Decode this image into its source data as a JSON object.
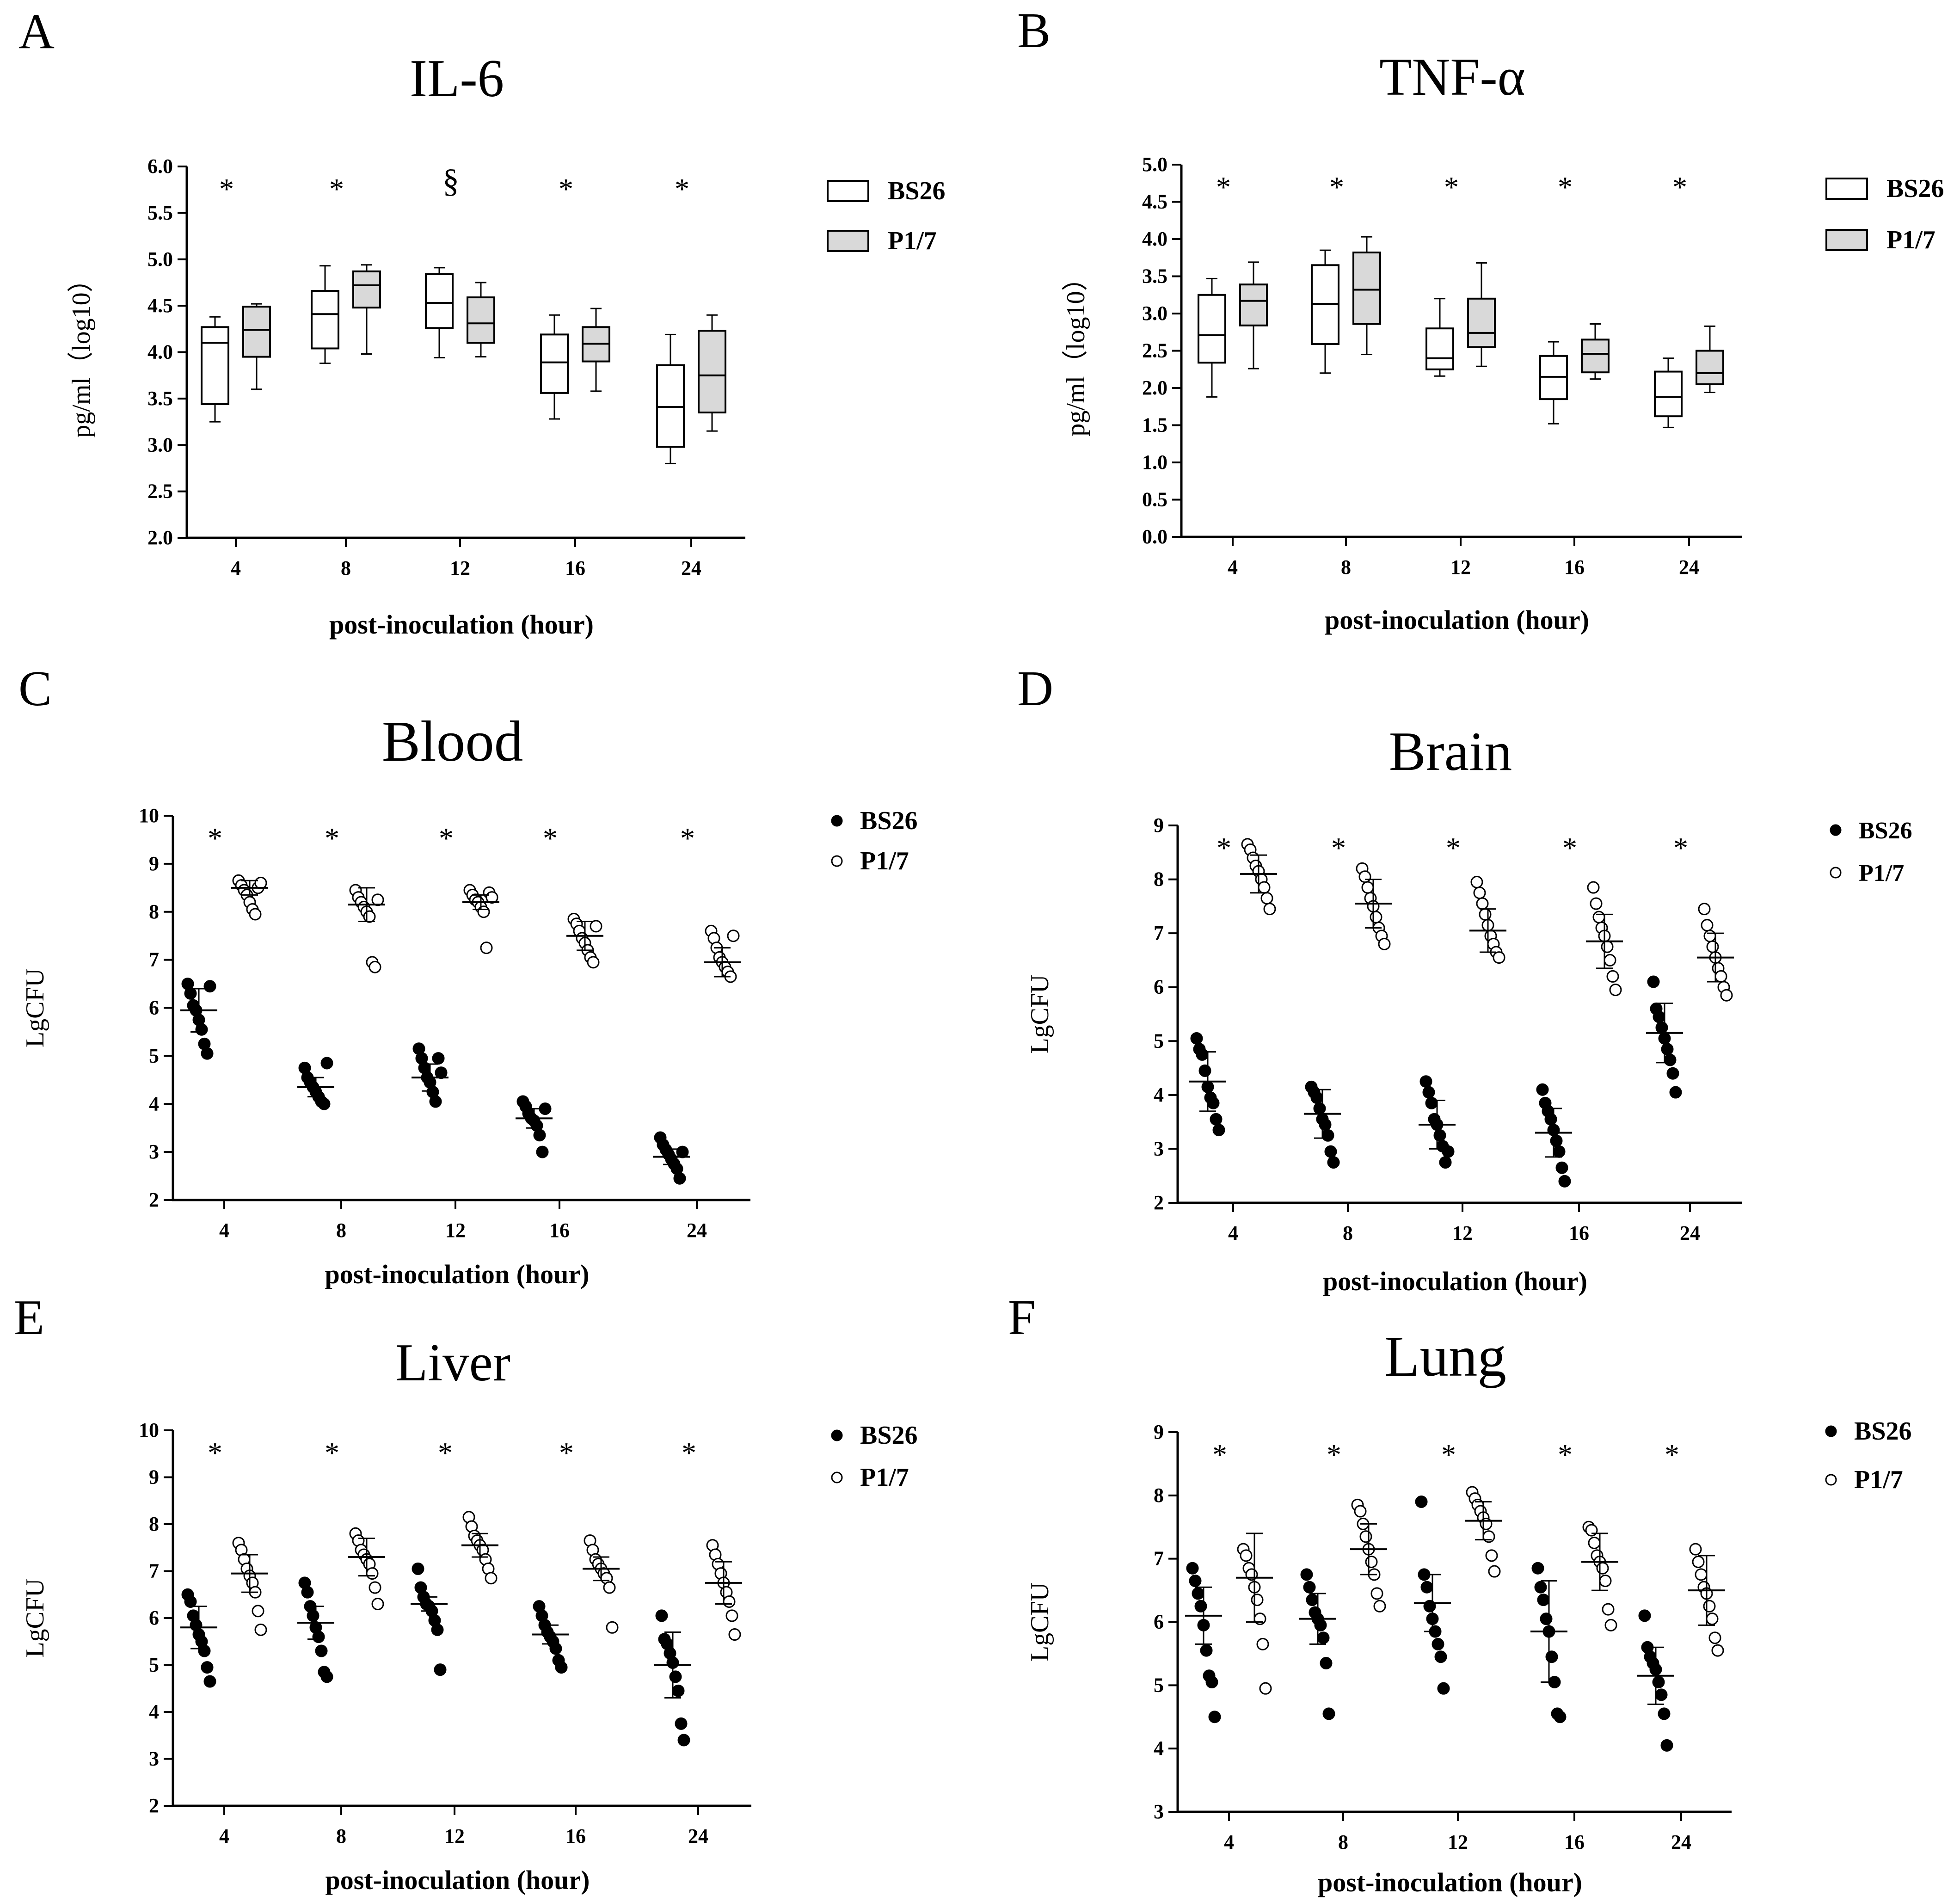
{
  "figure": {
    "xlabel": "post-inoculation (hour)",
    "significance_marker": "*",
    "section_marker": "§",
    "colors": {
      "ink": "#000000",
      "p17_fill": "#d9d9d9",
      "bs26_fill": "#ffffff",
      "background": "#ffffff"
    }
  },
  "chart_data": [
    {
      "id": "A",
      "panel_label": "A",
      "type": "box",
      "title": "IL-6",
      "xlabel": "post-inoculation (hour)",
      "ylabel": "pg/ml（log10）",
      "categories": [
        "4",
        "8",
        "12",
        "16",
        "24"
      ],
      "ylim": [
        2.0,
        6.0
      ],
      "yticks": [
        "2.0",
        "2.5",
        "3.0",
        "3.5",
        "4.0",
        "4.5",
        "5.0",
        "5.5",
        "6.0"
      ],
      "ytick_step": 0.5,
      "legend": [
        "BS26",
        "P1/7"
      ],
      "legend_position": "top-right",
      "markers": [
        "*",
        "*",
        "§",
        "*",
        "*"
      ],
      "series": [
        {
          "name": "BS26",
          "fill": "#ffffff",
          "boxes": [
            {
              "min": 3.25,
              "q1": 3.44,
              "median": 4.1,
              "q3": 4.27,
              "max": 4.38
            },
            {
              "min": 3.88,
              "q1": 4.04,
              "median": 4.41,
              "q3": 4.66,
              "max": 4.93
            },
            {
              "min": 3.94,
              "q1": 4.26,
              "median": 4.53,
              "q3": 4.84,
              "max": 4.91
            },
            {
              "min": 3.28,
              "q1": 3.56,
              "median": 3.89,
              "q3": 4.19,
              "max": 4.4
            },
            {
              "min": 2.8,
              "q1": 2.98,
              "median": 3.41,
              "q3": 3.86,
              "max": 4.19
            }
          ]
        },
        {
          "name": "P1/7",
          "fill": "#d9d9d9",
          "boxes": [
            {
              "min": 3.6,
              "q1": 3.95,
              "median": 4.24,
              "q3": 4.49,
              "max": 4.52
            },
            {
              "min": 3.98,
              "q1": 4.48,
              "median": 4.72,
              "q3": 4.87,
              "max": 4.94
            },
            {
              "min": 3.95,
              "q1": 4.1,
              "median": 4.31,
              "q3": 4.59,
              "max": 4.75
            },
            {
              "min": 3.58,
              "q1": 3.9,
              "median": 4.09,
              "q3": 4.27,
              "max": 4.47
            },
            {
              "min": 3.15,
              "q1": 3.35,
              "median": 3.75,
              "q3": 4.23,
              "max": 4.4
            }
          ]
        }
      ]
    },
    {
      "id": "B",
      "panel_label": "B",
      "type": "box",
      "title": "TNF-α",
      "xlabel": "post-inoculation (hour)",
      "ylabel": "pg/ml（log10）",
      "categories": [
        "4",
        "8",
        "12",
        "16",
        "24"
      ],
      "ylim": [
        0.0,
        5.0
      ],
      "yticks": [
        "0.0",
        "0.5",
        "1.0",
        "1.5",
        "2.0",
        "2.5",
        "3.0",
        "3.5",
        "4.0",
        "4.5",
        "5.0"
      ],
      "ytick_step": 0.5,
      "legend": [
        "BS26",
        "P1/7"
      ],
      "legend_position": "top-right",
      "markers": [
        "*",
        "*",
        "*",
        "*",
        "*"
      ],
      "series": [
        {
          "name": "BS26",
          "fill": "#ffffff",
          "boxes": [
            {
              "min": 1.88,
              "q1": 2.34,
              "median": 2.71,
              "q3": 3.25,
              "max": 3.47
            },
            {
              "min": 2.2,
              "q1": 2.59,
              "median": 3.13,
              "q3": 3.65,
              "max": 3.85
            },
            {
              "min": 2.16,
              "q1": 2.25,
              "median": 2.4,
              "q3": 2.8,
              "max": 3.2
            },
            {
              "min": 1.52,
              "q1": 1.85,
              "median": 2.15,
              "q3": 2.43,
              "max": 2.62
            },
            {
              "min": 1.47,
              "q1": 1.62,
              "median": 1.88,
              "q3": 2.22,
              "max": 2.4
            }
          ]
        },
        {
          "name": "P1/7",
          "fill": "#d9d9d9",
          "boxes": [
            {
              "min": 2.26,
              "q1": 2.84,
              "median": 3.17,
              "q3": 3.39,
              "max": 3.69
            },
            {
              "min": 2.45,
              "q1": 2.86,
              "median": 3.32,
              "q3": 3.82,
              "max": 4.03
            },
            {
              "min": 2.29,
              "q1": 2.55,
              "median": 2.74,
              "q3": 3.2,
              "max": 3.68
            },
            {
              "min": 2.12,
              "q1": 2.21,
              "median": 2.46,
              "q3": 2.65,
              "max": 2.86
            },
            {
              "min": 1.94,
              "q1": 2.05,
              "median": 2.2,
              "q3": 2.5,
              "max": 2.83
            }
          ]
        }
      ]
    },
    {
      "id": "C",
      "panel_label": "C",
      "type": "scatter",
      "title": "Blood",
      "xlabel": "post-inoculation (hour)",
      "ylabel": "LgCFU",
      "categories": [
        "4",
        "8",
        "12",
        "16",
        "24"
      ],
      "ylim": [
        2,
        10
      ],
      "yticks": [
        "2",
        "3",
        "4",
        "5",
        "6",
        "7",
        "8",
        "9",
        "10"
      ],
      "legend": [
        "BS26",
        "P1/7"
      ],
      "legend_position": "top-right",
      "markers": [
        "*",
        "*",
        "*",
        "*",
        "*"
      ],
      "series": [
        {
          "name": "BS26",
          "filled": true,
          "points": [
            [
              6.5,
              6.3,
              6.05,
              5.95,
              5.75,
              5.55,
              5.25,
              5.05,
              6.45
            ],
            [
              4.75,
              4.55,
              4.45,
              4.35,
              4.25,
              4.15,
              4.05,
              4.0,
              4.85
            ],
            [
              5.15,
              4.95,
              4.75,
              4.55,
              4.45,
              4.25,
              4.05,
              4.95,
              4.65
            ],
            [
              4.05,
              3.95,
              3.8,
              3.7,
              3.65,
              3.55,
              3.35,
              3.0,
              3.9
            ],
            [
              3.3,
              3.15,
              3.05,
              2.95,
              2.85,
              2.75,
              2.65,
              2.45,
              3.0
            ]
          ],
          "mean": [
            5.95,
            4.35,
            4.55,
            3.7,
            2.9
          ],
          "sd": [
            0.45,
            0.2,
            0.28,
            0.2,
            0.16
          ]
        },
        {
          "name": "P1/7",
          "filled": false,
          "points": [
            [
              8.65,
              8.55,
              8.45,
              8.35,
              8.2,
              8.05,
              7.95,
              8.5,
              8.6
            ],
            [
              8.45,
              8.3,
              8.2,
              8.1,
              8.0,
              7.9,
              6.95,
              6.85,
              8.25
            ],
            [
              8.45,
              8.35,
              8.25,
              8.2,
              8.1,
              8.0,
              7.25,
              8.4,
              8.3
            ],
            [
              7.85,
              7.75,
              7.6,
              7.45,
              7.35,
              7.2,
              7.05,
              6.95,
              7.7
            ],
            [
              7.6,
              7.45,
              7.25,
              7.05,
              6.95,
              6.85,
              6.75,
              6.65,
              7.5
            ]
          ],
          "mean": [
            8.5,
            8.15,
            8.2,
            7.5,
            6.95
          ],
          "sd": [
            0.15,
            0.35,
            0.15,
            0.3,
            0.3
          ]
        }
      ]
    },
    {
      "id": "D",
      "panel_label": "D",
      "type": "scatter",
      "title": "Brain",
      "xlabel": "post-inoculation (hour)",
      "ylabel": "LgCFU",
      "categories": [
        "4",
        "8",
        "12",
        "16",
        "24"
      ],
      "ylim": [
        2,
        9
      ],
      "yticks": [
        "2",
        "3",
        "4",
        "5",
        "6",
        "7",
        "8",
        "9"
      ],
      "legend": [
        "BS26",
        "P1/7"
      ],
      "legend_position": "top-right",
      "markers": [
        "*",
        "*",
        "*",
        "*",
        "*"
      ],
      "series": [
        {
          "name": "BS26",
          "filled": true,
          "points": [
            [
              5.05,
              4.85,
              4.75,
              4.45,
              4.15,
              3.95,
              3.85,
              3.55,
              3.35
            ],
            [
              4.15,
              4.05,
              3.95,
              3.75,
              3.55,
              3.45,
              3.25,
              2.95,
              2.75
            ],
            [
              4.25,
              4.05,
              3.85,
              3.55,
              3.45,
              3.25,
              3.05,
              2.75,
              2.95
            ],
            [
              4.1,
              3.85,
              3.7,
              3.55,
              3.35,
              3.15,
              2.95,
              2.65,
              2.4
            ],
            [
              6.1,
              5.6,
              5.45,
              5.25,
              5.05,
              4.85,
              4.65,
              4.4,
              4.05
            ]
          ],
          "mean": [
            4.25,
            3.65,
            3.45,
            3.3,
            5.15
          ],
          "sd": [
            0.55,
            0.45,
            0.45,
            0.45,
            0.55
          ]
        },
        {
          "name": "P1/7",
          "filled": false,
          "points": [
            [
              8.65,
              8.55,
              8.4,
              8.25,
              8.15,
              8.0,
              7.85,
              7.65,
              7.45
            ],
            [
              8.2,
              8.05,
              7.85,
              7.65,
              7.5,
              7.3,
              7.1,
              6.95,
              6.8
            ],
            [
              7.95,
              7.75,
              7.55,
              7.35,
              7.15,
              6.95,
              6.8,
              6.65,
              6.55
            ],
            [
              7.85,
              7.55,
              7.3,
              7.1,
              6.95,
              6.75,
              6.5,
              6.2,
              5.95
            ],
            [
              7.45,
              7.15,
              6.95,
              6.75,
              6.55,
              6.35,
              6.2,
              6.0,
              5.85
            ]
          ],
          "mean": [
            8.1,
            7.55,
            7.05,
            6.85,
            6.55
          ],
          "sd": [
            0.35,
            0.45,
            0.4,
            0.5,
            0.45
          ]
        }
      ]
    },
    {
      "id": "E",
      "panel_label": "E",
      "type": "scatter",
      "title": "Liver",
      "xlabel": "post-inoculation (hour)",
      "ylabel": "LgCFU",
      "categories": [
        "4",
        "8",
        "12",
        "16",
        "24"
      ],
      "ylim": [
        2,
        10
      ],
      "yticks": [
        "2",
        "3",
        "4",
        "5",
        "6",
        "7",
        "8",
        "9",
        "10"
      ],
      "legend": [
        "BS26",
        "P1/7"
      ],
      "legend_position": "top-right",
      "markers": [
        "*",
        "*",
        "*",
        "*",
        "*"
      ],
      "series": [
        {
          "name": "BS26",
          "filled": true,
          "points": [
            [
              6.5,
              6.35,
              6.05,
              5.85,
              5.65,
              5.5,
              5.3,
              4.95,
              4.65
            ],
            [
              6.75,
              6.55,
              6.25,
              6.05,
              5.8,
              5.6,
              5.3,
              4.85,
              4.75
            ],
            [
              7.05,
              6.65,
              6.45,
              6.3,
              6.25,
              6.15,
              5.95,
              5.75,
              4.9
            ],
            [
              6.25,
              6.05,
              5.85,
              5.7,
              5.6,
              5.5,
              5.35,
              5.1,
              4.95
            ],
            [
              6.05,
              5.55,
              5.45,
              5.25,
              5.05,
              4.75,
              4.45,
              3.75,
              3.4
            ]
          ],
          "mean": [
            5.8,
            5.9,
            6.3,
            5.65,
            5.0
          ],
          "sd": [
            0.45,
            0.35,
            0.15,
            0.2,
            0.7
          ]
        },
        {
          "name": "P1/7",
          "filled": false,
          "points": [
            [
              7.6,
              7.45,
              7.25,
              7.05,
              6.9,
              6.75,
              6.55,
              6.15,
              5.75
            ],
            [
              7.8,
              7.65,
              7.45,
              7.35,
              7.25,
              7.15,
              6.95,
              6.65,
              6.3
            ],
            [
              8.15,
              7.95,
              7.75,
              7.65,
              7.55,
              7.45,
              7.25,
              7.05,
              6.85
            ],
            [
              7.65,
              7.45,
              7.25,
              7.15,
              7.05,
              6.95,
              6.85,
              6.65,
              5.8
            ],
            [
              7.55,
              7.35,
              7.15,
              6.95,
              6.75,
              6.55,
              6.35,
              6.05,
              5.65
            ]
          ],
          "mean": [
            6.95,
            7.3,
            7.55,
            7.05,
            6.75
          ],
          "sd": [
            0.4,
            0.4,
            0.25,
            0.25,
            0.45
          ]
        }
      ]
    },
    {
      "id": "F",
      "panel_label": "F",
      "type": "scatter",
      "title": "Lung",
      "xlabel": "post-inoculation (hour)",
      "ylabel": "LgCFU",
      "categories": [
        "4",
        "8",
        "12",
        "16",
        "24"
      ],
      "ylim": [
        3,
        9
      ],
      "yticks": [
        "3",
        "4",
        "5",
        "6",
        "7",
        "8",
        "9"
      ],
      "legend": [
        "BS26",
        "P1/7"
      ],
      "legend_position": "top-right",
      "markers": [
        "*",
        "*",
        "*",
        "*",
        "*"
      ],
      "series": [
        {
          "name": "BS26",
          "filled": true,
          "points": [
            [
              6.85,
              6.65,
              6.45,
              6.25,
              5.95,
              5.55,
              5.15,
              5.05,
              4.5
            ],
            [
              6.75,
              6.55,
              6.35,
              6.15,
              6.05,
              5.95,
              5.75,
              5.35,
              4.55
            ],
            [
              7.9,
              6.75,
              6.55,
              6.25,
              6.05,
              5.85,
              5.65,
              5.45,
              4.95
            ],
            [
              6.85,
              6.55,
              6.35,
              6.05,
              5.85,
              5.45,
              5.05,
              4.55,
              4.5
            ],
            [
              6.1,
              5.6,
              5.45,
              5.35,
              5.25,
              5.05,
              4.85,
              4.55,
              4.05
            ]
          ],
          "mean": [
            6.1,
            6.05,
            6.3,
            5.85,
            5.15
          ],
          "sd": [
            0.45,
            0.4,
            0.45,
            0.8,
            0.45
          ]
        },
        {
          "name": "P1/7",
          "filled": false,
          "points": [
            [
              7.15,
              7.05,
              6.85,
              6.75,
              6.55,
              6.35,
              6.05,
              5.65,
              4.95
            ],
            [
              7.85,
              7.75,
              7.55,
              7.35,
              7.15,
              6.95,
              6.75,
              6.45,
              6.25
            ],
            [
              8.05,
              7.95,
              7.85,
              7.75,
              7.65,
              7.55,
              7.35,
              7.05,
              6.8
            ],
            [
              7.5,
              7.45,
              7.25,
              7.05,
              6.95,
              6.85,
              6.65,
              6.2,
              5.95
            ],
            [
              7.15,
              6.95,
              6.75,
              6.55,
              6.45,
              6.25,
              6.05,
              5.75,
              5.55
            ]
          ],
          "mean": [
            6.7,
            7.15,
            7.6,
            6.95,
            6.5
          ],
          "sd": [
            0.7,
            0.4,
            0.3,
            0.45,
            0.55
          ]
        }
      ]
    }
  ]
}
